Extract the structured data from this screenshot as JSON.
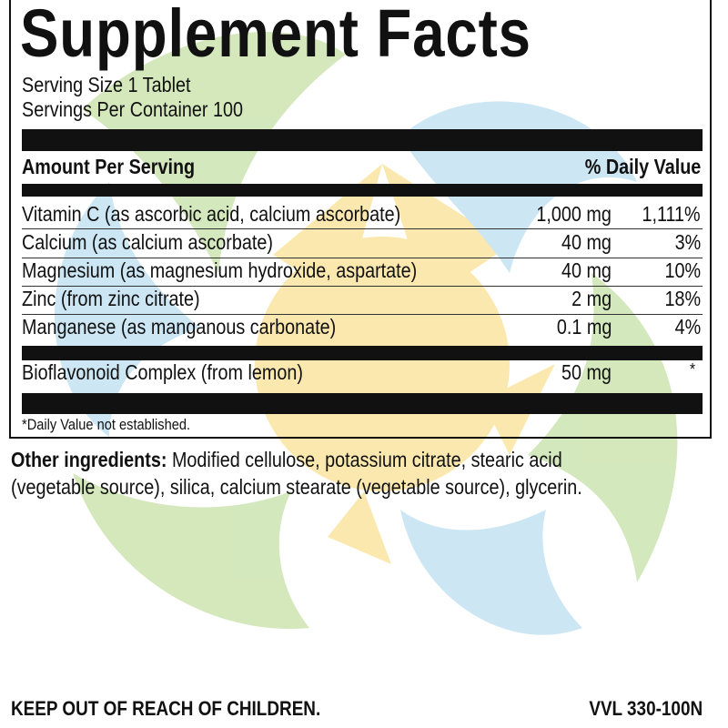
{
  "title": "Supplement Facts",
  "serving_size": "Serving Size 1 Tablet",
  "servings_per_container": "Servings Per Container 100",
  "header": {
    "amount": "Amount Per Serving",
    "daily_value": "% Daily Value"
  },
  "rows": [
    {
      "name": "Vitamin C (as ascorbic acid, calcium ascorbate)",
      "amount": "1,000 mg",
      "dv": "1,111%"
    },
    {
      "name": "Calcium (as calcium ascorbate)",
      "amount": "40 mg",
      "dv": "3%"
    },
    {
      "name": "Magnesium (as magnesium hydroxide, aspartate)",
      "amount": "40 mg",
      "dv": "10%"
    },
    {
      "name": "Zinc (from zinc citrate)",
      "amount": "2 mg",
      "dv": "18%"
    },
    {
      "name": "Manganese (as manganous carbonate)",
      "amount": "0.1 mg",
      "dv": "4%"
    }
  ],
  "extra_row": {
    "name": "Bioflavonoid Complex (from lemon)",
    "amount": "50 mg",
    "dv": "*"
  },
  "footnote": "*Daily Value not established.",
  "other_ingredients": {
    "label": "Other ingredients:",
    "line1": " Modified cellulose, potassium citrate, stearic acid",
    "line2": "(vegetable source), silica, calcium stearate (vegetable source), glycerin."
  },
  "warning": "KEEP OUT OF REACH OF CHILDREN.",
  "product_code": "VVL 330-100N",
  "colors": {
    "text": "#111111",
    "leaf_green": "#cfe6b5",
    "leaf_blue": "#c7e4f2",
    "sun_yellow": "#fbe6a6"
  }
}
